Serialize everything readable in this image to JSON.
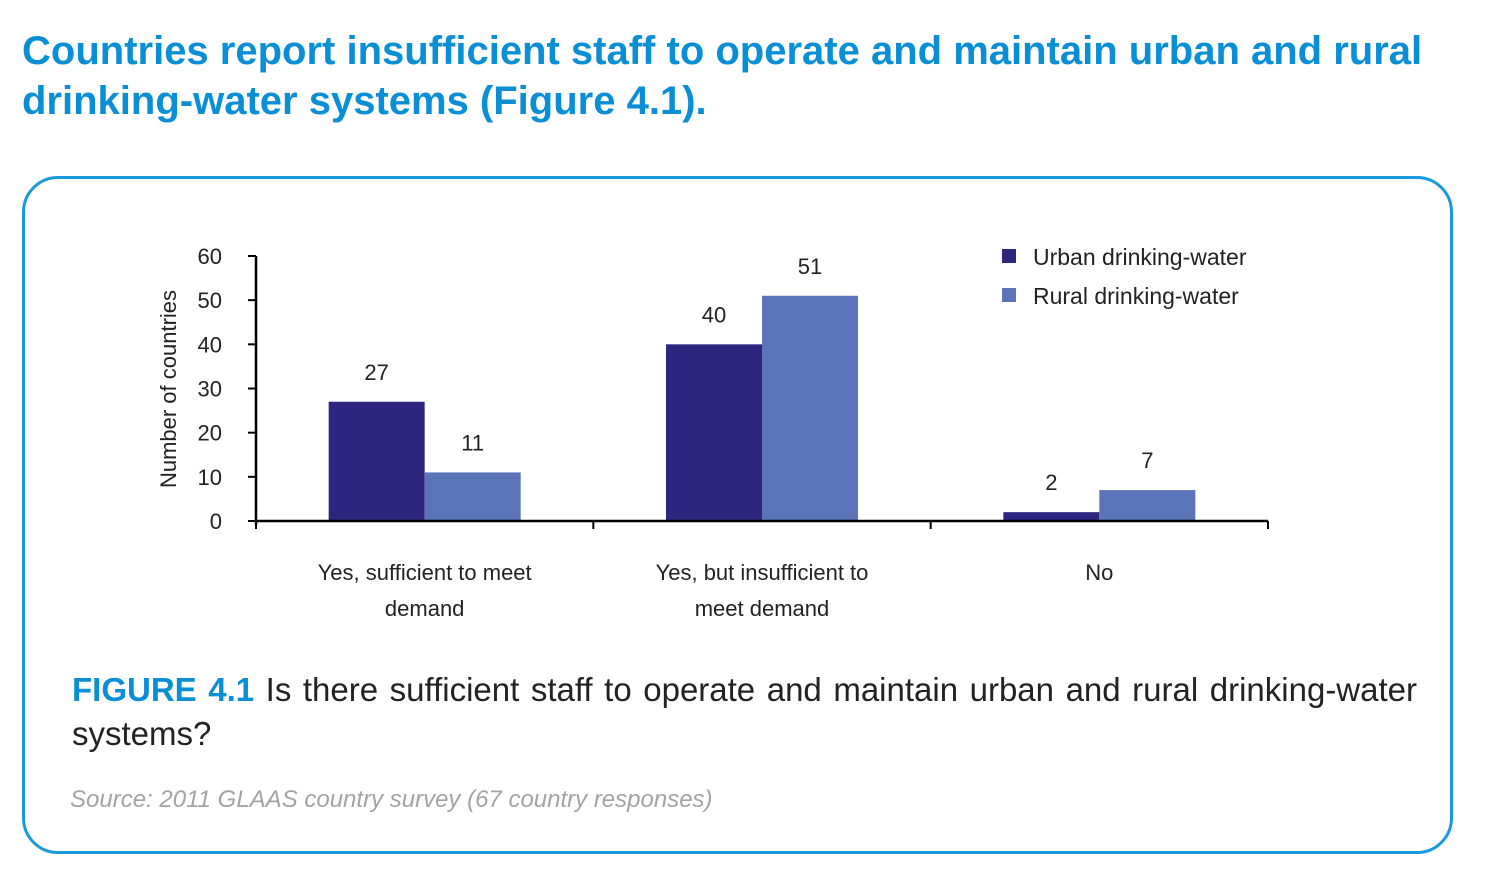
{
  "headline": "Countries report insufficient staff to operate and maintain urban and rural drinking-water systems (Figure 4.1).",
  "caption": {
    "figure_number": "FIGURE 4.1",
    "text": " Is there sufficient staff to operate and maintain urban and rural drinking-water systems?"
  },
  "source": "Source: 2011 GLAAS country survey (67 country responses)",
  "colors": {
    "accent": "#0a8fd6",
    "panel_border": "#1a9ade",
    "urban": "#2e2580",
    "rural": "#5a73b9"
  },
  "chart_data": {
    "type": "bar",
    "ylabel": "Number of countries",
    "xlabel": "",
    "ylim": [
      0,
      60
    ],
    "yticks": [
      0,
      10,
      20,
      30,
      40,
      50,
      60
    ],
    "categories": [
      [
        "Yes, sufficient to meet",
        "demand"
      ],
      [
        "Yes, but insufficient to",
        "meet demand"
      ],
      [
        "No"
      ]
    ],
    "series": [
      {
        "name": "Urban drinking-water",
        "color": "#2e2580",
        "values": [
          27,
          40,
          2
        ]
      },
      {
        "name": "Rural drinking-water",
        "color": "#5a73b9",
        "values": [
          11,
          51,
          7
        ]
      }
    ],
    "legend_position": "top-right",
    "grid": false
  }
}
